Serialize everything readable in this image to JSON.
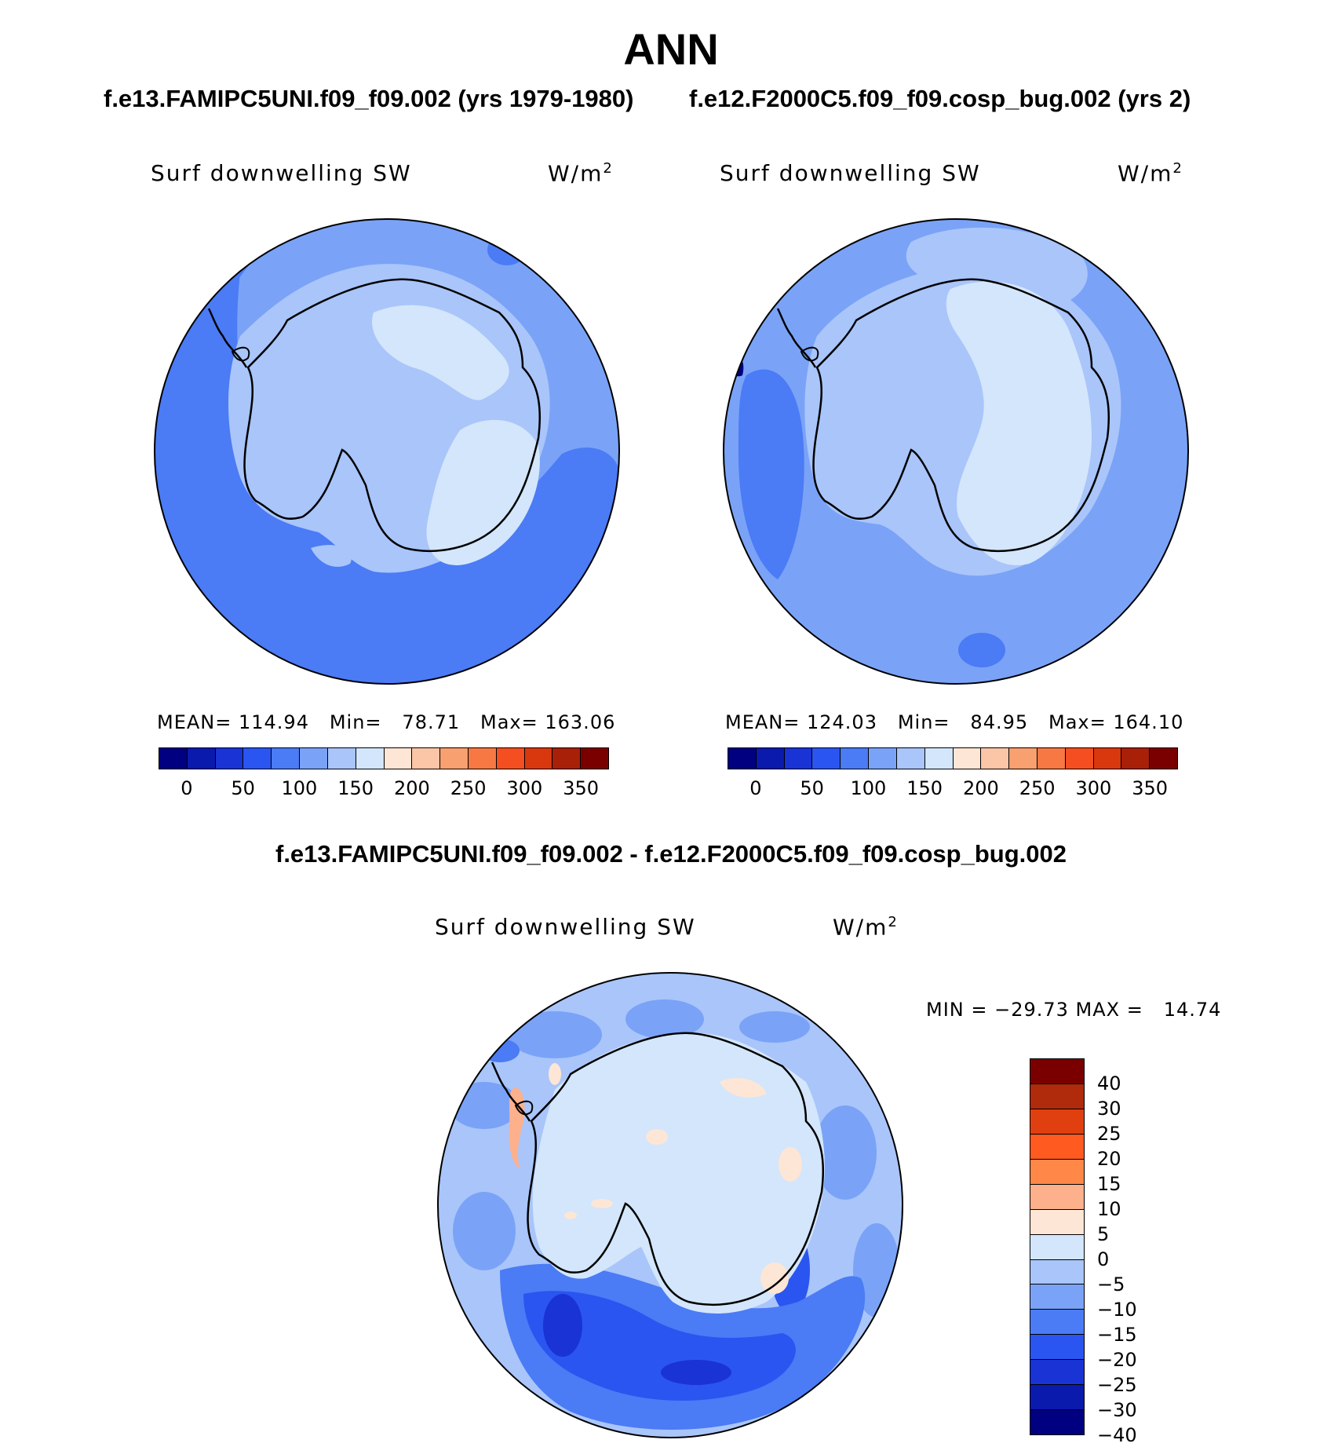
{
  "title": "ANN",
  "case1_title": "f.e13.FAMIPC5UNI.f09_f09.002 (yrs 1979-1980)",
  "case2_title": "f.e12.F2000C5.f09_f09.cosp_bug.002 (yrs 2)",
  "diff_title": "f.e13.FAMIPC5UNI.f09_f09.002 - f.e12.F2000C5.f09_f09.cosp_bug.002",
  "panels": [
    {
      "variable": "Surf downwelling SW",
      "units_base": "W/m",
      "units_exp": "2",
      "stats": "MEAN= 114.94   Min=   78.71   Max= 163.06"
    },
    {
      "variable": "Surf downwelling SW",
      "units_base": "W/m",
      "units_exp": "2",
      "stats": "MEAN= 124.03   Min=   84.95   Max= 164.10"
    },
    {
      "variable": "Surf downwelling SW",
      "units_base": "W/m",
      "units_exp": "2",
      "stats": "MIN = −29.73 MAX =   14.74"
    }
  ],
  "field_colorbar": {
    "colors": [
      "#000080",
      "#0a1aad",
      "#1a33d4",
      "#2a55f0",
      "#4b7bf5",
      "#7aa3f7",
      "#a9c5fa",
      "#d3e6fb",
      "#fde6d6",
      "#fbc5a7",
      "#f8a070",
      "#f77843",
      "#f54f21",
      "#d9380f",
      "#a82008",
      "#7a0000"
    ],
    "tick_labels": [
      "0",
      "50",
      "100",
      "150",
      "200",
      "250",
      "300",
      "350"
    ]
  },
  "diff_colorbar": {
    "colors": [
      "#7a0000",
      "#b02a0c",
      "#e0400f",
      "#ff5a1f",
      "#ff8848",
      "#fcb08c",
      "#fde6d6",
      "#d3e6fb",
      "#a9c5fa",
      "#7aa3f7",
      "#4b7bf5",
      "#2a55f0",
      "#1a33d4",
      "#0a1aad",
      "#000080"
    ],
    "tick_labels": [
      "40",
      "30",
      "25",
      "20",
      "15",
      "10",
      "5",
      "0",
      "−5",
      "−10",
      "−15",
      "−20",
      "−25",
      "−30",
      "−40"
    ]
  }
}
